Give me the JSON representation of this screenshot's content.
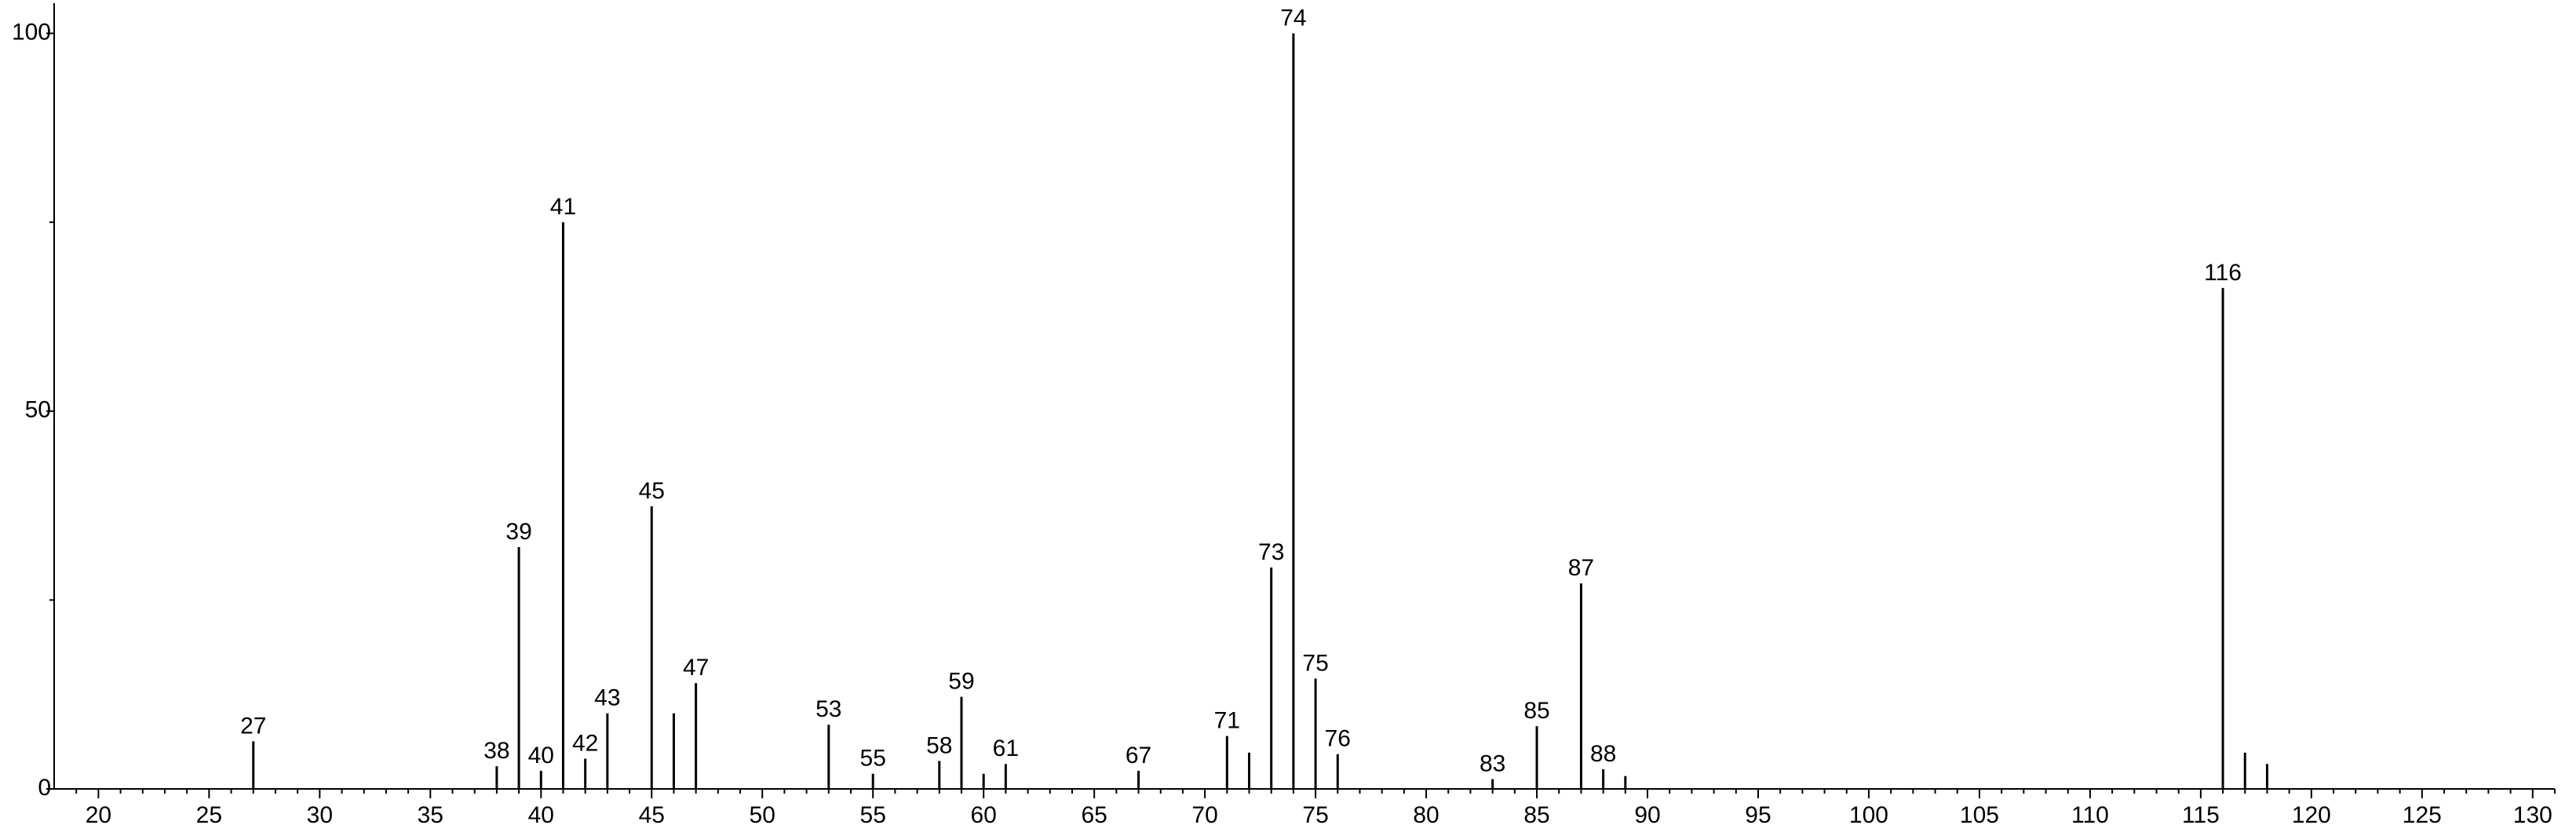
{
  "chart_data": {
    "type": "stem",
    "x": [
      27,
      38,
      39,
      40,
      41,
      42,
      43,
      45,
      46,
      47,
      53,
      55,
      58,
      59,
      60,
      61,
      67,
      71,
      72,
      73,
      74,
      75,
      76,
      83,
      85,
      87,
      88,
      89,
      116,
      117,
      118
    ],
    "values": [
      6.3,
      3,
      32,
      2.4,
      75,
      4,
      10,
      37.4,
      10,
      14,
      8.5,
      2,
      3.7,
      12.2,
      2,
      3.3,
      2.4,
      7,
      4.8,
      29.3,
      100,
      14.6,
      4.6,
      1.3,
      8.3,
      27.2,
      2.6,
      1.7,
      66.3,
      4.8,
      3.3
    ],
    "peak_labels": [
      27,
      38,
      39,
      40,
      41,
      42,
      43,
      45,
      null,
      47,
      53,
      55,
      58,
      59,
      null,
      61,
      67,
      71,
      null,
      73,
      74,
      75,
      76,
      83,
      85,
      87,
      88,
      null,
      116,
      null,
      null
    ],
    "color": "#000000",
    "xlim": [
      18,
      131
    ],
    "ylim": [
      0,
      104
    ],
    "xticks": [
      20,
      25,
      30,
      35,
      40,
      45,
      50,
      55,
      60,
      65,
      70,
      75,
      80,
      85,
      90,
      95,
      100,
      105,
      110,
      115,
      120,
      125,
      130
    ],
    "xminorticks": [
      19,
      21,
      22,
      23,
      24,
      26,
      27,
      28,
      29,
      31,
      32,
      33,
      34,
      36,
      37,
      38,
      39,
      41,
      42,
      43,
      44,
      46,
      47,
      48,
      49,
      51,
      52,
      53,
      54,
      56,
      57,
      58,
      59,
      61,
      62,
      63,
      64,
      66,
      67,
      68,
      69,
      71,
      72,
      73,
      74,
      76,
      77,
      78,
      79,
      81,
      82,
      83,
      84,
      86,
      87,
      88,
      89,
      91,
      92,
      93,
      94,
      96,
      97,
      98,
      99,
      101,
      102,
      103,
      104,
      106,
      107,
      108,
      109,
      111,
      112,
      113,
      114,
      116,
      117,
      118,
      119,
      121,
      122,
      123,
      124,
      126,
      127,
      128,
      129,
      131
    ],
    "yticks": [
      0,
      50,
      100
    ],
    "yminorticks": [
      25,
      75
    ]
  }
}
